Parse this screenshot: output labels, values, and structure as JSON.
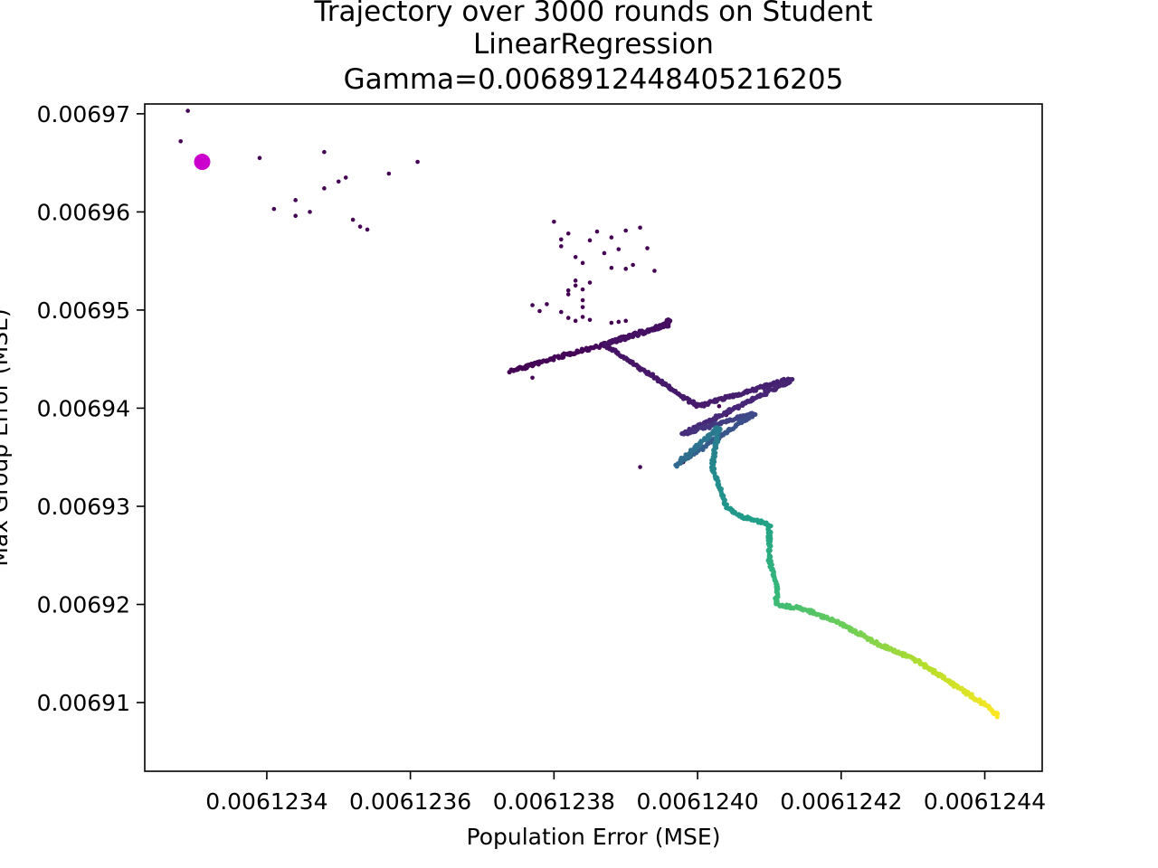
{
  "chart_data": {
    "type": "scatter",
    "title_lines": [
      "Trajectory over 3000 rounds on Student",
      "LinearRegression",
      "Gamma=0.006891244840521620​5"
    ],
    "xlabel": "Population Error (MSE)",
    "ylabel": "Max Group Error (MSE)",
    "xlim": [
      0.00612323,
      0.00612448
    ],
    "ylim": [
      0.006903,
      0.006971
    ],
    "xticks": [
      0.0061234,
      0.0061236,
      0.0061238,
      0.006124,
      0.0061242,
      0.0061244
    ],
    "xtick_labels": [
      "0.0061234",
      "0.0061236",
      "0.0061238",
      "0.0061240",
      "0.0061242",
      "0.0061244"
    ],
    "yticks": [
      0.00691,
      0.00692,
      0.00693,
      0.00694,
      0.00695,
      0.00696,
      0.00697
    ],
    "ytick_labels": [
      "0.00691",
      "0.00692",
      "0.00693",
      "0.00694",
      "0.00695",
      "0.00696",
      "0.00697"
    ],
    "colormap": "viridis",
    "start_marker": {
      "x": 0.00612331,
      "y": 0.0069651,
      "color": "#cc00cc"
    },
    "scattered_points": [
      [
        0.00612329,
        0.0069703
      ],
      [
        0.00612328,
        0.0069672
      ],
      [
        0.00612339,
        0.0069655
      ],
      [
        0.00612341,
        0.0069603
      ],
      [
        0.00612344,
        0.0069612
      ],
      [
        0.00612344,
        0.0069596
      ],
      [
        0.00612346,
        0.00696
      ],
      [
        0.00612348,
        0.0069624
      ],
      [
        0.00612348,
        0.0069661
      ],
      [
        0.0061235,
        0.0069631
      ],
      [
        0.00612351,
        0.0069635
      ],
      [
        0.00612352,
        0.0069592
      ],
      [
        0.00612353,
        0.0069585
      ],
      [
        0.00612354,
        0.0069582
      ],
      [
        0.00612357,
        0.0069639
      ],
      [
        0.00612361,
        0.0069651
      ],
      [
        0.0061238,
        0.006959
      ],
      [
        0.00612381,
        0.0069565
      ],
      [
        0.00612381,
        0.0069572
      ],
      [
        0.00612382,
        0.0069578
      ],
      [
        0.00612383,
        0.0069554
      ],
      [
        0.00612384,
        0.0069548
      ],
      [
        0.00612385,
        0.0069571
      ],
      [
        0.00612386,
        0.006958
      ],
      [
        0.00612387,
        0.0069558
      ],
      [
        0.00612388,
        0.0069543
      ],
      [
        0.00612388,
        0.0069574
      ],
      [
        0.00612389,
        0.0069562
      ],
      [
        0.0061239,
        0.0069581
      ],
      [
        0.0061239,
        0.0069542
      ],
      [
        0.00612391,
        0.0069546
      ],
      [
        0.00612392,
        0.0069584
      ],
      [
        0.00612393,
        0.0069563
      ],
      [
        0.00612394,
        0.006954
      ],
      [
        0.00612379,
        0.0069506
      ],
      [
        0.00612381,
        0.0069498
      ],
      [
        0.00612382,
        0.0069516
      ],
      [
        0.00612383,
        0.0069525
      ],
      [
        0.00612384,
        0.006951
      ],
      [
        0.00612384,
        0.0069503
      ],
      [
        0.00612378,
        0.0069499
      ],
      [
        0.00612377,
        0.0069505
      ],
      [
        0.00612382,
        0.0069492
      ],
      [
        0.00612383,
        0.0069489
      ],
      [
        0.00612384,
        0.0069493
      ],
      [
        0.00612385,
        0.006949
      ],
      [
        0.00612388,
        0.0069487
      ],
      [
        0.00612389,
        0.0069488
      ],
      [
        0.0061239,
        0.0069489
      ],
      [
        0.00612383,
        0.006953
      ],
      [
        0.00612384,
        0.0069521
      ],
      [
        0.00612382,
        0.006952
      ],
      [
        0.00612385,
        0.0069528
      ],
      [
        0.00612376,
        0.006944
      ],
      [
        0.00612377,
        0.0069431
      ],
      [
        0.00612392,
        0.006934
      ],
      [
        0.00612398,
        0.0069345
      ],
      [
        0.00612402,
        0.0069388
      ],
      [
        0.00612403,
        0.0069402
      ],
      [
        0.00612404,
        0.0069393
      ]
    ],
    "trajectory_waypoints": [
      [
        0.00612374,
        0.0069438
      ],
      [
        0.00612382,
        0.0069455
      ],
      [
        0.00612387,
        0.0069465
      ],
      [
        0.00612395,
        0.0069484
      ],
      [
        0.00612396,
        0.006949
      ],
      [
        0.00612396,
        0.0069485
      ],
      [
        0.00612387,
        0.0069465
      ],
      [
        0.006124,
        0.0069402
      ],
      [
        0.00612413,
        0.006943
      ],
      [
        0.00612413,
        0.0069428
      ],
      [
        0.00612398,
        0.0069374
      ],
      [
        0.00612408,
        0.0069395
      ],
      [
        0.00612397,
        0.0069342
      ],
      [
        0.00612402,
        0.0069374
      ],
      [
        0.00612403,
        0.0069381
      ],
      [
        0.00612402,
        0.0069341
      ],
      [
        0.00612404,
        0.00693
      ],
      [
        0.00612406,
        0.006929
      ],
      [
        0.0061241,
        0.0069281
      ],
      [
        0.0061241,
        0.0069245
      ],
      [
        0.00612411,
        0.0069222
      ],
      [
        0.00612411,
        0.00692
      ],
      [
        0.00612415,
        0.0069195
      ],
      [
        0.0061242,
        0.006918
      ],
      [
        0.00612425,
        0.006916
      ],
      [
        0.0061243,
        0.0069145
      ],
      [
        0.00612435,
        0.0069122
      ],
      [
        0.0061244,
        0.0069098
      ],
      [
        0.00612442,
        0.0069086
      ]
    ]
  }
}
